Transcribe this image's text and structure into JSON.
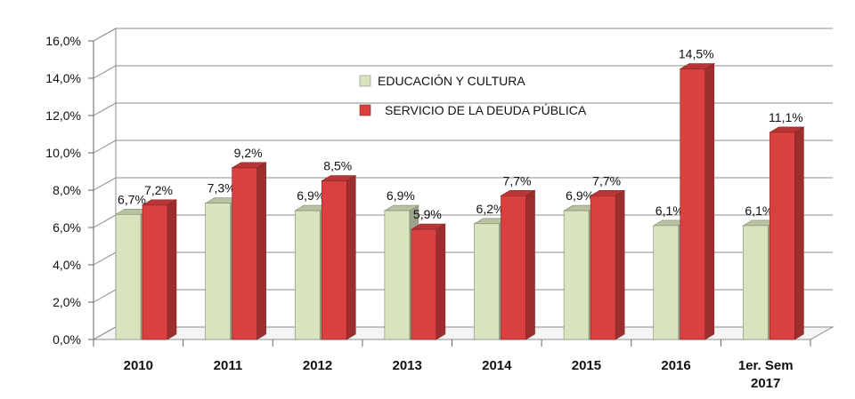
{
  "chart_data": {
    "type": "bar",
    "categories": [
      "2010",
      "2011",
      "2012",
      "2013",
      "2014",
      "2015",
      "2016",
      [
        "1er. Sem",
        "2017"
      ]
    ],
    "ylim": [
      0,
      16
    ],
    "yticks": [
      "0,0%",
      "2,0%",
      "4,0%",
      "6,0%",
      "8,0%",
      "10,0%",
      "12,0%",
      "14,0%",
      "16,0%"
    ],
    "grid": true,
    "legend_position": "top-center",
    "series": [
      {
        "name": "EDUCACIÓN Y CULTURA",
        "color": "#d7e4bd",
        "values": [
          6.7,
          7.3,
          6.9,
          6.9,
          6.2,
          6.9,
          6.1,
          6.1
        ],
        "labels": [
          "6,7%",
          "7,3%",
          "6,9%",
          "6,9%",
          "6,2%",
          "6,9%",
          "6,1%",
          "6,1%"
        ]
      },
      {
        "name": "SERVICIO DE LA DEUDA PÚBLICA",
        "color": "#d9403f",
        "values": [
          7.2,
          9.2,
          8.5,
          5.9,
          7.7,
          7.7,
          14.5,
          11.1
        ],
        "labels": [
          "7,2%",
          "9,2%",
          "8,5%",
          "5,9%",
          "7,7%",
          "7,7%",
          "14,5%",
          "11,1%"
        ]
      }
    ]
  }
}
